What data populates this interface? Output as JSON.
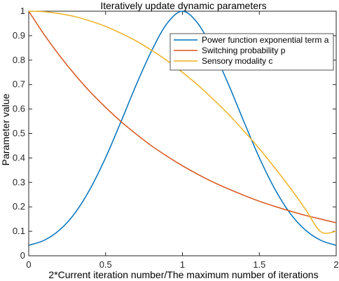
{
  "chart_data": {
    "type": "line",
    "title": "Iteratively update dynamic parameters",
    "xlabel": "2*Current iteration number/The maximum number of iterations",
    "ylabel": "Parameter value",
    "xlim": [
      0,
      2
    ],
    "ylim": [
      0,
      1
    ],
    "x_ticks": [
      "0",
      "0.5",
      "1",
      "1.5",
      "2"
    ],
    "y_ticks": [
      "0",
      "0.1",
      "0.2",
      "0.3",
      "0.4",
      "0.5",
      "0.6",
      "0.7",
      "0.8",
      "0.9",
      "1"
    ],
    "grid": false,
    "legend_position": "top-right",
    "x": [
      0,
      0.1,
      0.2,
      0.3,
      0.4,
      0.5,
      0.6,
      0.7,
      0.8,
      0.9,
      1.0,
      1.1,
      1.2,
      1.3,
      1.4,
      1.5,
      1.6,
      1.7,
      1.8,
      1.9,
      2.0
    ],
    "series": [
      {
        "name": "Power function exponential term a",
        "color": "#0072BD",
        "values": [
          0.043,
          0.063,
          0.105,
          0.174,
          0.274,
          0.401,
          0.548,
          0.7,
          0.839,
          0.95,
          1.0,
          0.95,
          0.839,
          0.7,
          0.548,
          0.401,
          0.274,
          0.174,
          0.105,
          0.063,
          0.043
        ]
      },
      {
        "name": "Switching probability  p",
        "color": "#D95319",
        "values": [
          1.0,
          0.905,
          0.819,
          0.741,
          0.67,
          0.607,
          0.549,
          0.497,
          0.449,
          0.407,
          0.368,
          0.333,
          0.301,
          0.273,
          0.247,
          0.223,
          0.202,
          0.183,
          0.165,
          0.15,
          0.135
        ]
      },
      {
        "name": "Sensory modality c",
        "color": "#EDB120",
        "values": [
          1.0,
          0.998,
          0.99,
          0.978,
          0.96,
          0.938,
          0.91,
          0.878,
          0.84,
          0.798,
          0.75,
          0.698,
          0.64,
          0.578,
          0.51,
          0.438,
          0.36,
          0.278,
          0.19,
          0.098,
          0.1
        ]
      }
    ]
  }
}
